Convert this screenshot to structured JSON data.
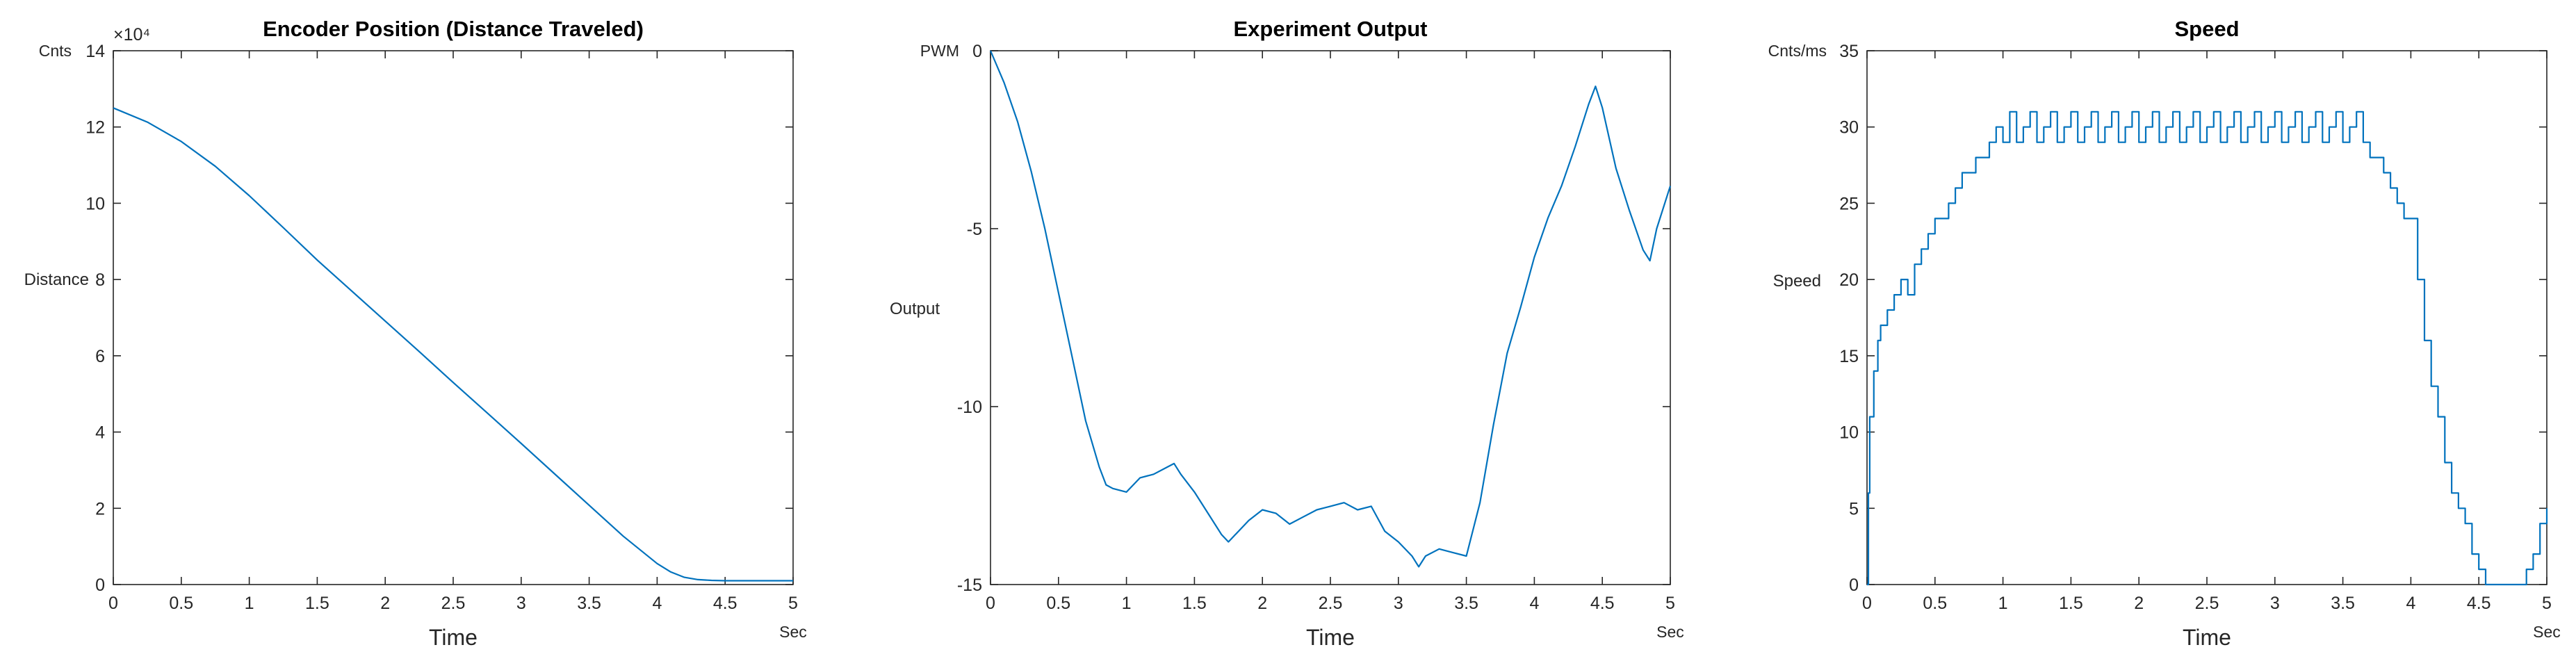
{
  "chart_data": [
    {
      "type": "line",
      "title": "Encoder Position (Distance Traveled)",
      "xlabel": "Time",
      "ylabel": "Distance",
      "x_unit": "Sec",
      "y_unit": "Cnts",
      "y_exponent_label": "×10⁴",
      "xlim": [
        0,
        5
      ],
      "ylim": [
        0,
        140000
      ],
      "x_ticks": [
        0,
        0.5,
        1,
        1.5,
        2,
        2.5,
        3,
        3.5,
        4,
        4.5,
        5
      ],
      "x_tick_labels": [
        "0",
        "0.5",
        "1",
        "1.5",
        "2",
        "2.5",
        "3",
        "3.5",
        "4",
        "4.5",
        "5"
      ],
      "y_ticks": [
        0,
        20000,
        40000,
        60000,
        80000,
        100000,
        120000,
        140000
      ],
      "y_tick_labels": [
        "0",
        "2",
        "4",
        "6",
        "8",
        "10",
        "12",
        "14"
      ],
      "grid": false,
      "color": "#0072bd",
      "series": [
        {
          "x": [
            0,
            0.25,
            0.5,
            0.75,
            1,
            1.25,
            1.5,
            1.75,
            2,
            2.25,
            2.5,
            2.75,
            3,
            3.25,
            3.5,
            3.75,
            4,
            4.1,
            4.2,
            4.3,
            4.4,
            4.5,
            4.75,
            5
          ],
          "y": [
            125000,
            121300,
            116200,
            109700,
            102000,
            93600,
            85100,
            77100,
            69100,
            61100,
            53000,
            45000,
            37000,
            28900,
            20800,
            12700,
            5500,
            3300,
            1900,
            1300,
            1100,
            1000,
            1000,
            1000
          ]
        }
      ]
    },
    {
      "type": "line",
      "title": "Experiment Output",
      "xlabel": "Time",
      "ylabel": "Output",
      "x_unit": "Sec",
      "y_unit": "PWM",
      "xlim": [
        0,
        5
      ],
      "ylim": [
        -15,
        0
      ],
      "x_ticks": [
        0,
        0.5,
        1,
        1.5,
        2,
        2.5,
        3,
        3.5,
        4,
        4.5,
        5
      ],
      "x_tick_labels": [
        "0",
        "0.5",
        "1",
        "1.5",
        "2",
        "2.5",
        "3",
        "3.5",
        "4",
        "4.5",
        "5"
      ],
      "y_ticks": [
        -15,
        -10,
        -5,
        0
      ],
      "y_tick_labels": [
        "-15",
        "-10",
        "-5",
        "0"
      ],
      "grid": false,
      "color": "#0072bd",
      "series": [
        {
          "x": [
            0,
            0.1,
            0.2,
            0.3,
            0.4,
            0.5,
            0.6,
            0.7,
            0.8,
            0.85,
            0.9,
            1.0,
            1.05,
            1.1,
            1.2,
            1.3,
            1.35,
            1.4,
            1.5,
            1.6,
            1.7,
            1.75,
            1.8,
            1.9,
            2.0,
            2.1,
            2.2,
            2.3,
            2.4,
            2.5,
            2.6,
            2.7,
            2.8,
            2.9,
            3.0,
            3.1,
            3.15,
            3.2,
            3.3,
            3.4,
            3.5,
            3.6,
            3.7,
            3.8,
            3.9,
            4.0,
            4.1,
            4.2,
            4.3,
            4.4,
            4.45,
            4.5,
            4.6,
            4.7,
            4.8,
            4.85,
            4.9,
            5.0
          ],
          "y": [
            0,
            -0.9,
            -2.0,
            -3.4,
            -5.0,
            -6.8,
            -8.6,
            -10.4,
            -11.7,
            -12.2,
            -12.3,
            -12.4,
            -12.2,
            -12.0,
            -11.9,
            -11.7,
            -11.6,
            -11.9,
            -12.4,
            -13.0,
            -13.6,
            -13.8,
            -13.6,
            -13.2,
            -12.9,
            -13.0,
            -13.3,
            -13.1,
            -12.9,
            -12.8,
            -12.7,
            -12.9,
            -12.8,
            -13.5,
            -13.8,
            -14.2,
            -14.5,
            -14.2,
            -14.0,
            -14.1,
            -14.2,
            -12.7,
            -10.5,
            -8.5,
            -7.2,
            -5.8,
            -4.7,
            -3.8,
            -2.7,
            -1.5,
            -1.0,
            -1.6,
            -3.3,
            -4.5,
            -5.6,
            -5.9,
            -5.0,
            -3.8
          ]
        }
      ]
    },
    {
      "type": "line",
      "title": "Speed",
      "xlabel": "Time",
      "ylabel": "Speed",
      "x_unit": "Sec",
      "y_unit": "Cnts/ms",
      "xlim": [
        0,
        5
      ],
      "ylim": [
        0,
        35
      ],
      "x_ticks": [
        0,
        0.5,
        1,
        1.5,
        2,
        2.5,
        3,
        3.5,
        4,
        4.5,
        5
      ],
      "x_tick_labels": [
        "0",
        "0.5",
        "1",
        "1.5",
        "2",
        "2.5",
        "3",
        "3.5",
        "4",
        "4.5",
        "5"
      ],
      "y_ticks": [
        0,
        5,
        10,
        15,
        20,
        25,
        30,
        35
      ],
      "y_tick_labels": [
        "0",
        "5",
        "10",
        "15",
        "20",
        "25",
        "30",
        "35"
      ],
      "grid": false,
      "color": "#0072bd",
      "series": [
        {
          "x": [
            0,
            0.01,
            0.02,
            0.05,
            0.08,
            0.1,
            0.15,
            0.2,
            0.25,
            0.3,
            0.35,
            0.4,
            0.45,
            0.5,
            0.55,
            0.6,
            0.65,
            0.7,
            0.75,
            0.8,
            0.85,
            0.9,
            0.95,
            1.0,
            1.05,
            1.1,
            1.15,
            1.2,
            1.25,
            1.3,
            1.35,
            1.4,
            1.45,
            1.5,
            1.55,
            1.6,
            1.65,
            1.7,
            1.75,
            1.8,
            1.85,
            1.9,
            1.95,
            2.0,
            2.05,
            2.1,
            2.15,
            2.2,
            2.25,
            2.3,
            2.35,
            2.4,
            2.45,
            2.5,
            2.55,
            2.6,
            2.65,
            2.7,
            2.75,
            2.8,
            2.85,
            2.9,
            2.95,
            3.0,
            3.05,
            3.1,
            3.15,
            3.2,
            3.25,
            3.3,
            3.35,
            3.4,
            3.45,
            3.5,
            3.55,
            3.6,
            3.65,
            3.7,
            3.75,
            3.8,
            3.85,
            3.9,
            3.95,
            4.0,
            4.05,
            4.1,
            4.15,
            4.2,
            4.25,
            4.3,
            4.35,
            4.4,
            4.45,
            4.5,
            4.55,
            4.6,
            4.65,
            4.7,
            4.75,
            4.8,
            4.85,
            4.9,
            4.95,
            5.0
          ],
          "y": [
            0,
            6,
            11,
            14,
            16,
            17,
            18,
            19,
            20,
            19,
            21,
            22,
            23,
            24,
            24,
            25,
            26,
            27,
            27,
            28,
            28,
            29,
            30,
            29,
            31,
            29,
            30,
            31,
            29,
            30,
            31,
            29,
            30,
            31,
            29,
            30,
            31,
            29,
            30,
            31,
            29,
            30,
            31,
            29,
            30,
            31,
            29,
            30,
            31,
            29,
            30,
            31,
            29,
            30,
            31,
            29,
            30,
            31,
            29,
            30,
            31,
            29,
            30,
            31,
            29,
            30,
            31,
            29,
            30,
            31,
            29,
            30,
            31,
            29,
            30,
            31,
            29,
            28,
            28,
            27,
            26,
            25,
            24,
            24,
            20,
            16,
            13,
            11,
            8,
            6,
            5,
            4,
            2,
            1,
            0,
            0,
            0,
            0,
            0,
            0,
            1,
            2,
            4,
            5
          ]
        }
      ]
    }
  ]
}
